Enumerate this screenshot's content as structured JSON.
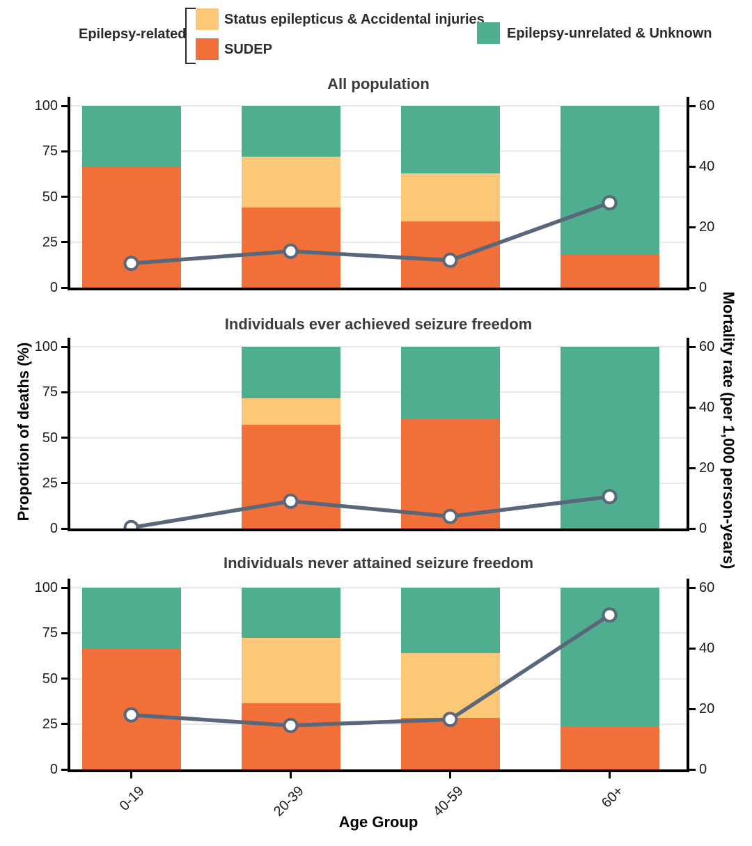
{
  "colors": {
    "sudep": "#F1703A",
    "status": "#FCC878",
    "unrelated": "#4FAE90",
    "line": "#58677A",
    "marker_fill": "#FFFFFF",
    "axis": "#000000",
    "grid": "#E9E9E9",
    "panel_title_text": "#3B3B3B"
  },
  "legend": {
    "group_label": "Epilepsy-related",
    "items": [
      {
        "key": "status",
        "label": "Status epilepticus & Accidental injuries",
        "color": "#FCC878"
      },
      {
        "key": "sudep",
        "label": "SUDEP",
        "color": "#F1703A"
      },
      {
        "key": "unrelated",
        "label": "Epilepsy-unrelated & Unknown",
        "color": "#4FAE90"
      }
    ]
  },
  "axes": {
    "x_title": "Age Group",
    "y_left_title": "Proportion of deaths (%)",
    "y_right_title": "Mortality rate (per 1,000 person-years)",
    "x_categories": [
      "0-19",
      "20-39",
      "40-59",
      "60+"
    ],
    "y_left_ticks": [
      0,
      25,
      50,
      75,
      100
    ],
    "y_right_ticks": [
      0,
      20,
      40,
      60
    ],
    "y_left_range": [
      0,
      100
    ],
    "y_right_range": [
      0,
      60
    ],
    "grid": "horizontal-only"
  },
  "chart_data": [
    {
      "type": "stacked-bar+line",
      "title": "All population",
      "categories": [
        "0-19",
        "20-39",
        "40-59",
        "60+"
      ],
      "series": [
        {
          "name": "SUDEP",
          "axis": "left",
          "unit": "%",
          "values": [
            66.5,
            44,
            36.5,
            18
          ]
        },
        {
          "name": "Status epilepticus & Accidental injuries",
          "axis": "left",
          "unit": "%",
          "values": [
            0,
            28,
            26.5,
            0
          ]
        },
        {
          "name": "Epilepsy-unrelated & Unknown",
          "axis": "left",
          "unit": "%",
          "values": [
            33.5,
            28,
            37,
            82
          ]
        }
      ],
      "line_series": {
        "name": "Mortality rate",
        "axis": "right",
        "unit": "per 1,000 person-years",
        "values": [
          8,
          12,
          9,
          28
        ]
      }
    },
    {
      "type": "stacked-bar+line",
      "title": "Individuals ever achieved seizure freedom",
      "categories": [
        "0-19",
        "20-39",
        "40-59",
        "60+"
      ],
      "series": [
        {
          "name": "SUDEP",
          "axis": "left",
          "unit": "%",
          "values": [
            0,
            57,
            60,
            0
          ]
        },
        {
          "name": "Status epilepticus & Accidental injuries",
          "axis": "left",
          "unit": "%",
          "values": [
            0,
            14.5,
            0,
            0
          ]
        },
        {
          "name": "Epilepsy-unrelated & Unknown",
          "axis": "left",
          "unit": "%",
          "values": [
            0,
            28.5,
            40,
            100
          ]
        }
      ],
      "line_series": {
        "name": "Mortality rate",
        "axis": "right",
        "unit": "per 1,000 person-years",
        "values": [
          0.3,
          9,
          4,
          10.5
        ]
      }
    },
    {
      "type": "stacked-bar+line",
      "title": "Individuals never attained seizure freedom",
      "categories": [
        "0-19",
        "20-39",
        "40-59",
        "60+"
      ],
      "series": [
        {
          "name": "SUDEP",
          "axis": "left",
          "unit": "%",
          "values": [
            66.5,
            36.5,
            28.5,
            23.5
          ]
        },
        {
          "name": "Status epilepticus & Accidental injuries",
          "axis": "left",
          "unit": "%",
          "values": [
            0,
            36,
            35.5,
            0
          ]
        },
        {
          "name": "Epilepsy-unrelated & Unknown",
          "axis": "left",
          "unit": "%",
          "values": [
            33.5,
            27.5,
            36,
            76.5
          ]
        }
      ],
      "line_series": {
        "name": "Mortality rate",
        "axis": "right",
        "unit": "per 1,000 person-years",
        "values": [
          18,
          14.5,
          16.5,
          51
        ]
      }
    }
  ]
}
